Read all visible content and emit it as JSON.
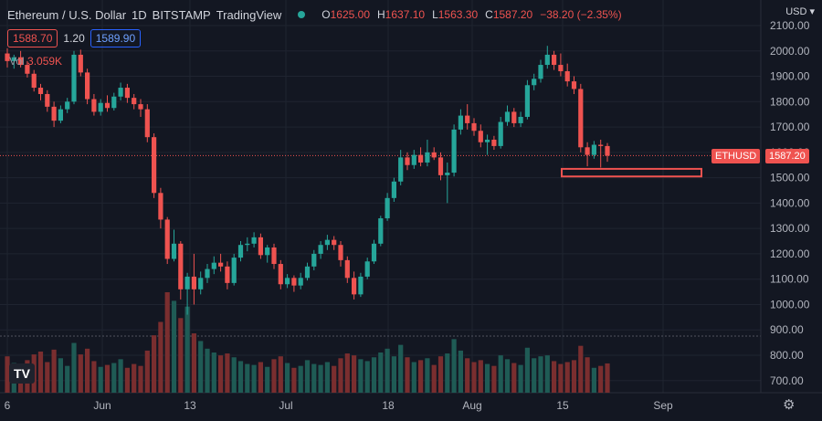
{
  "header": {
    "symbol": "Ethereum / U.S. Dollar",
    "interval": "1D",
    "exchange": "BITSTAMP",
    "source": "TradingView",
    "o_label": "O",
    "o": "1625.00",
    "h_label": "H",
    "h": "1637.10",
    "l_label": "L",
    "l": "1563.30",
    "c_label": "C",
    "c": "1587.20",
    "change": "−38.20 (−2.35%)"
  },
  "quote": {
    "bid": "1588.70",
    "spread": "1.20",
    "ask": "1589.90"
  },
  "volume": {
    "label": "Vol",
    "value": "3.059K"
  },
  "currency": "USD",
  "price_badge": {
    "ticker": "ETHUSD",
    "price": "1587.20"
  },
  "logo_text": "TV",
  "colors": {
    "up": "#26a69a",
    "down": "#ef5350",
    "background": "#131722"
  },
  "chart_data": {
    "type": "candlestick",
    "x_tick_labels": [
      "6",
      "Jun",
      "13",
      "Jul",
      "18",
      "Aug",
      "15",
      "Sep"
    ],
    "y_tick_labels": [
      "2100.00",
      "2000.00",
      "1900.00",
      "1800.00",
      "1700.00",
      "1600.00",
      "1500.00",
      "1400.00",
      "1300.00",
      "1200.00",
      "1100.00",
      "1000.00",
      "900.00",
      "800.00",
      "700.00"
    ],
    "ylim": [
      650,
      2150
    ],
    "last_price": 1587.2,
    "highlight_zone": [
      1505,
      1535
    ],
    "candles": [
      {
        "o": 1990,
        "h": 2010,
        "l": 1935,
        "c": 1960,
        "v": "3.8K"
      },
      {
        "o": 1960,
        "h": 1985,
        "l": 1930,
        "c": 1975,
        "v": "3.1K"
      },
      {
        "o": 1975,
        "h": 2000,
        "l": 1935,
        "c": 1945,
        "v": "2.9K"
      },
      {
        "o": 1945,
        "h": 1960,
        "l": 1895,
        "c": 1910,
        "v": "3.4K"
      },
      {
        "o": 1910,
        "h": 1925,
        "l": 1840,
        "c": 1855,
        "v": "4.0K"
      },
      {
        "o": 1855,
        "h": 1870,
        "l": 1805,
        "c": 1830,
        "v": "4.3K"
      },
      {
        "o": 1830,
        "h": 1845,
        "l": 1760,
        "c": 1780,
        "v": "3.2K"
      },
      {
        "o": 1780,
        "h": 1800,
        "l": 1700,
        "c": 1725,
        "v": "4.5K"
      },
      {
        "o": 1725,
        "h": 1785,
        "l": 1715,
        "c": 1770,
        "v": "3.6K"
      },
      {
        "o": 1770,
        "h": 1815,
        "l": 1755,
        "c": 1800,
        "v": "2.8K"
      },
      {
        "o": 1800,
        "h": 2000,
        "l": 1790,
        "c": 1985,
        "v": "5.2K"
      },
      {
        "o": 1985,
        "h": 2005,
        "l": 1900,
        "c": 1915,
        "v": "4.0K"
      },
      {
        "o": 1915,
        "h": 1930,
        "l": 1790,
        "c": 1810,
        "v": "4.6K"
      },
      {
        "o": 1810,
        "h": 1830,
        "l": 1745,
        "c": 1760,
        "v": "3.3K"
      },
      {
        "o": 1760,
        "h": 1810,
        "l": 1745,
        "c": 1795,
        "v": "2.7K"
      },
      {
        "o": 1795,
        "h": 1825,
        "l": 1760,
        "c": 1775,
        "v": "2.9K"
      },
      {
        "o": 1775,
        "h": 1835,
        "l": 1765,
        "c": 1820,
        "v": "3.1K"
      },
      {
        "o": 1820,
        "h": 1875,
        "l": 1805,
        "c": 1855,
        "v": "3.5K"
      },
      {
        "o": 1855,
        "h": 1870,
        "l": 1795,
        "c": 1815,
        "v": "2.6K"
      },
      {
        "o": 1815,
        "h": 1830,
        "l": 1770,
        "c": 1790,
        "v": "3.0K"
      },
      {
        "o": 1790,
        "h": 1810,
        "l": 1740,
        "c": 1770,
        "v": "2.8K"
      },
      {
        "o": 1770,
        "h": 1790,
        "l": 1640,
        "c": 1660,
        "v": "4.4K"
      },
      {
        "o": 1660,
        "h": 1675,
        "l": 1420,
        "c": 1440,
        "v": "6.0K"
      },
      {
        "o": 1440,
        "h": 1460,
        "l": 1300,
        "c": 1335,
        "v": "7.4K"
      },
      {
        "o": 1335,
        "h": 1345,
        "l": 1160,
        "c": 1180,
        "v": "10.5K"
      },
      {
        "o": 1180,
        "h": 1295,
        "l": 1170,
        "c": 1240,
        "v": "9.6K"
      },
      {
        "o": 1240,
        "h": 1250,
        "l": 1020,
        "c": 1060,
        "v": "7.8K"
      },
      {
        "o": 1060,
        "h": 1125,
        "l": 960,
        "c": 1110,
        "v": "9.0K"
      },
      {
        "o": 1110,
        "h": 1200,
        "l": 1000,
        "c": 1060,
        "v": "6.2K"
      },
      {
        "o": 1060,
        "h": 1130,
        "l": 1040,
        "c": 1105,
        "v": "5.4K"
      },
      {
        "o": 1105,
        "h": 1160,
        "l": 1085,
        "c": 1140,
        "v": "4.6K"
      },
      {
        "o": 1140,
        "h": 1190,
        "l": 1120,
        "c": 1165,
        "v": "4.2K"
      },
      {
        "o": 1165,
        "h": 1200,
        "l": 1130,
        "c": 1150,
        "v": "3.9K"
      },
      {
        "o": 1150,
        "h": 1170,
        "l": 1060,
        "c": 1085,
        "v": "4.1K"
      },
      {
        "o": 1085,
        "h": 1200,
        "l": 1075,
        "c": 1185,
        "v": "3.7K"
      },
      {
        "o": 1185,
        "h": 1250,
        "l": 1170,
        "c": 1235,
        "v": "3.3K"
      },
      {
        "o": 1235,
        "h": 1265,
        "l": 1210,
        "c": 1240,
        "v": "3.0K"
      },
      {
        "o": 1240,
        "h": 1285,
        "l": 1225,
        "c": 1265,
        "v": "2.9K"
      },
      {
        "o": 1265,
        "h": 1280,
        "l": 1180,
        "c": 1195,
        "v": "3.2K"
      },
      {
        "o": 1195,
        "h": 1235,
        "l": 1165,
        "c": 1225,
        "v": "2.7K"
      },
      {
        "o": 1225,
        "h": 1240,
        "l": 1140,
        "c": 1160,
        "v": "3.5K"
      },
      {
        "o": 1160,
        "h": 1175,
        "l": 1060,
        "c": 1080,
        "v": "3.8K"
      },
      {
        "o": 1080,
        "h": 1120,
        "l": 1065,
        "c": 1105,
        "v": "3.1K"
      },
      {
        "o": 1105,
        "h": 1115,
        "l": 1050,
        "c": 1075,
        "v": "2.6K"
      },
      {
        "o": 1075,
        "h": 1125,
        "l": 1060,
        "c": 1105,
        "v": "2.8K"
      },
      {
        "o": 1105,
        "h": 1165,
        "l": 1095,
        "c": 1150,
        "v": "3.4K"
      },
      {
        "o": 1150,
        "h": 1215,
        "l": 1135,
        "c": 1200,
        "v": "3.0K"
      },
      {
        "o": 1200,
        "h": 1250,
        "l": 1180,
        "c": 1235,
        "v": "2.9K"
      },
      {
        "o": 1235,
        "h": 1275,
        "l": 1215,
        "c": 1255,
        "v": "3.2K"
      },
      {
        "o": 1255,
        "h": 1270,
        "l": 1215,
        "c": 1235,
        "v": "2.8K"
      },
      {
        "o": 1235,
        "h": 1250,
        "l": 1150,
        "c": 1175,
        "v": "3.6K"
      },
      {
        "o": 1175,
        "h": 1190,
        "l": 1085,
        "c": 1105,
        "v": "4.1K"
      },
      {
        "o": 1105,
        "h": 1130,
        "l": 1020,
        "c": 1040,
        "v": "3.9K"
      },
      {
        "o": 1040,
        "h": 1125,
        "l": 1030,
        "c": 1110,
        "v": "3.5K"
      },
      {
        "o": 1110,
        "h": 1185,
        "l": 1100,
        "c": 1170,
        "v": "3.3K"
      },
      {
        "o": 1170,
        "h": 1255,
        "l": 1160,
        "c": 1240,
        "v": "3.7K"
      },
      {
        "o": 1240,
        "h": 1350,
        "l": 1230,
        "c": 1340,
        "v": "4.2K"
      },
      {
        "o": 1340,
        "h": 1440,
        "l": 1330,
        "c": 1420,
        "v": "4.6K"
      },
      {
        "o": 1420,
        "h": 1500,
        "l": 1405,
        "c": 1485,
        "v": "3.8K"
      },
      {
        "o": 1485,
        "h": 1610,
        "l": 1470,
        "c": 1580,
        "v": "5.0K"
      },
      {
        "o": 1580,
        "h": 1600,
        "l": 1530,
        "c": 1550,
        "v": "3.7K"
      },
      {
        "o": 1550,
        "h": 1610,
        "l": 1535,
        "c": 1590,
        "v": "3.2K"
      },
      {
        "o": 1590,
        "h": 1620,
        "l": 1545,
        "c": 1560,
        "v": "3.4K"
      },
      {
        "o": 1560,
        "h": 1650,
        "l": 1545,
        "c": 1600,
        "v": "3.6K"
      },
      {
        "o": 1600,
        "h": 1620,
        "l": 1570,
        "c": 1580,
        "v": "2.9K"
      },
      {
        "o": 1580,
        "h": 1600,
        "l": 1490,
        "c": 1510,
        "v": "3.8K"
      },
      {
        "o": 1510,
        "h": 1560,
        "l": 1400,
        "c": 1520,
        "v": "4.1K"
      },
      {
        "o": 1520,
        "h": 1710,
        "l": 1505,
        "c": 1690,
        "v": "5.6K"
      },
      {
        "o": 1690,
        "h": 1770,
        "l": 1670,
        "c": 1745,
        "v": "4.4K"
      },
      {
        "o": 1745,
        "h": 1790,
        "l": 1690,
        "c": 1715,
        "v": "3.6K"
      },
      {
        "o": 1715,
        "h": 1735,
        "l": 1665,
        "c": 1685,
        "v": "3.2K"
      },
      {
        "o": 1685,
        "h": 1710,
        "l": 1620,
        "c": 1640,
        "v": "3.4K"
      },
      {
        "o": 1640,
        "h": 1670,
        "l": 1590,
        "c": 1650,
        "v": "3.0K"
      },
      {
        "o": 1650,
        "h": 1665,
        "l": 1610,
        "c": 1625,
        "v": "2.8K"
      },
      {
        "o": 1625,
        "h": 1740,
        "l": 1615,
        "c": 1720,
        "v": "3.9K"
      },
      {
        "o": 1720,
        "h": 1785,
        "l": 1705,
        "c": 1760,
        "v": "3.5K"
      },
      {
        "o": 1760,
        "h": 1775,
        "l": 1700,
        "c": 1715,
        "v": "3.1K"
      },
      {
        "o": 1715,
        "h": 1760,
        "l": 1700,
        "c": 1740,
        "v": "2.9K"
      },
      {
        "o": 1740,
        "h": 1885,
        "l": 1730,
        "c": 1865,
        "v": "4.7K"
      },
      {
        "o": 1865,
        "h": 1910,
        "l": 1845,
        "c": 1890,
        "v": "3.6K"
      },
      {
        "o": 1890,
        "h": 1965,
        "l": 1875,
        "c": 1945,
        "v": "3.8K"
      },
      {
        "o": 1945,
        "h": 2020,
        "l": 1930,
        "c": 1985,
        "v": "3.9K"
      },
      {
        "o": 1985,
        "h": 2000,
        "l": 1925,
        "c": 1945,
        "v": "3.3K"
      },
      {
        "o": 1945,
        "h": 1990,
        "l": 1900,
        "c": 1920,
        "v": "3.0K"
      },
      {
        "o": 1920,
        "h": 1950,
        "l": 1860,
        "c": 1880,
        "v": "3.2K"
      },
      {
        "o": 1880,
        "h": 1900,
        "l": 1830,
        "c": 1850,
        "v": "3.4K"
      },
      {
        "o": 1850,
        "h": 1870,
        "l": 1600,
        "c": 1620,
        "v": "4.9K"
      },
      {
        "o": 1620,
        "h": 1640,
        "l": 1545,
        "c": 1590,
        "v": "3.7K"
      },
      {
        "o": 1590,
        "h": 1645,
        "l": 1575,
        "c": 1630,
        "v": "2.6K"
      },
      {
        "o": 1630,
        "h": 1650,
        "l": 1540,
        "c": 1625,
        "v": "2.8K"
      },
      {
        "o": 1625,
        "h": 1637,
        "l": 1563,
        "c": 1587,
        "v": "3.059K"
      }
    ]
  }
}
